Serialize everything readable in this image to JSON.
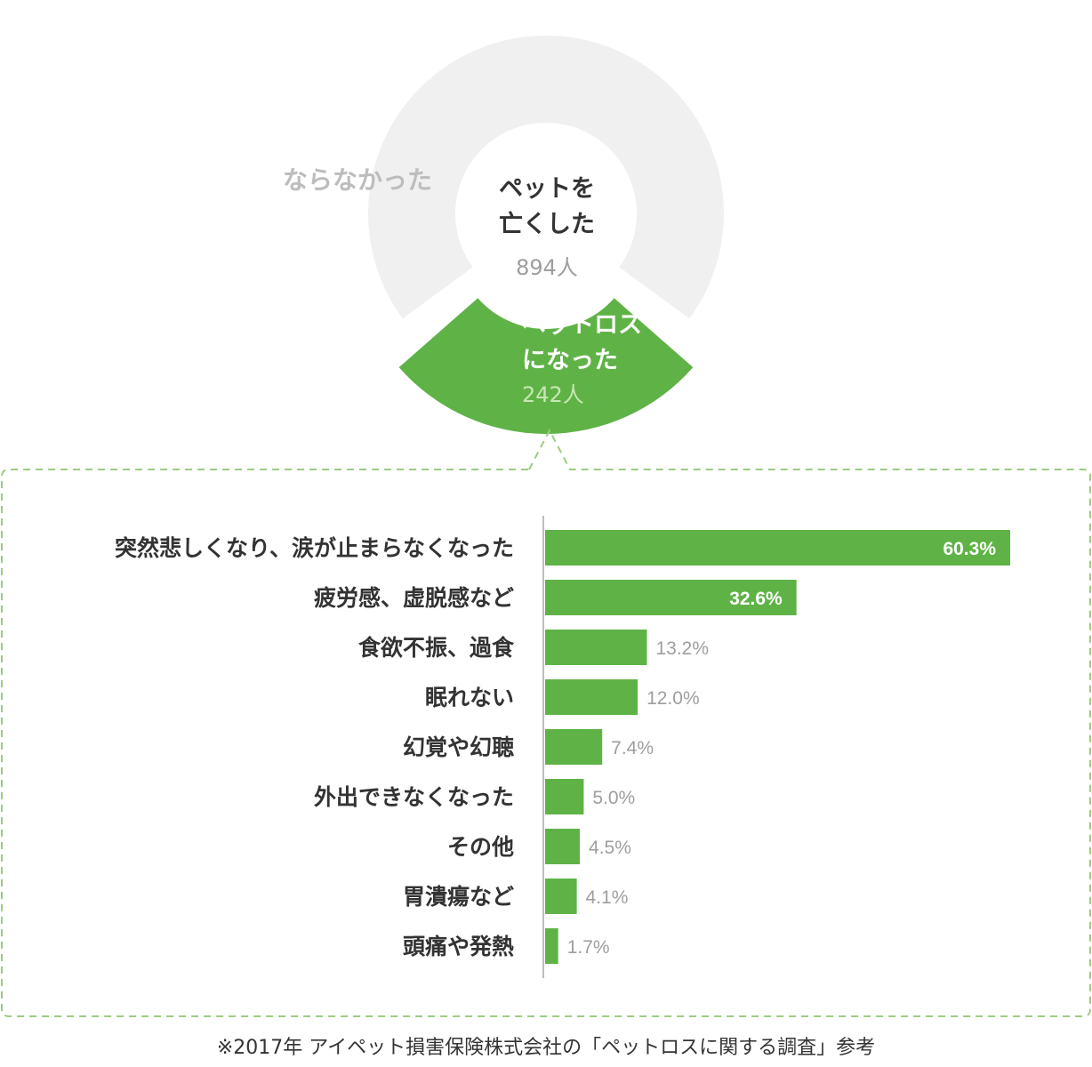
{
  "colors": {
    "accent": "#5fb346",
    "track": "#f0f0f0",
    "value_outside": "#9e9e9e",
    "category_text": "#333333"
  },
  "donut": {
    "not_label": "ならなかった",
    "center_label": "ペットを\n亡くした",
    "center_count": "894人",
    "loss_label": "ペットロス\nになった",
    "loss_count": "242人",
    "total": 894,
    "loss": 242
  },
  "chart_data": {
    "type": "bar",
    "orientation": "horizontal",
    "categories": [
      "突然悲しくなり、涙が止まらなくなった",
      "疲労感、虚脱感など",
      "食欲不振、過食",
      "眠れない",
      "幻覚や幻聴",
      "外出できなくなった",
      "その他",
      "胃潰瘍など",
      "頭痛や発熱"
    ],
    "values": [
      60.3,
      32.6,
      13.2,
      12.0,
      7.4,
      5.0,
      4.5,
      4.1,
      1.7
    ],
    "value_labels": [
      "60.3%",
      "32.6%",
      "13.2%",
      "12.0%",
      "7.4%",
      "5.0%",
      "4.5%",
      "4.1%",
      "1.7%"
    ],
    "xlim": [
      0,
      60.3
    ],
    "grid": false,
    "legend": "none"
  },
  "footnote": "※2017年 アイペット損害保険株式会社の「ペットロスに関する調査」参考"
}
